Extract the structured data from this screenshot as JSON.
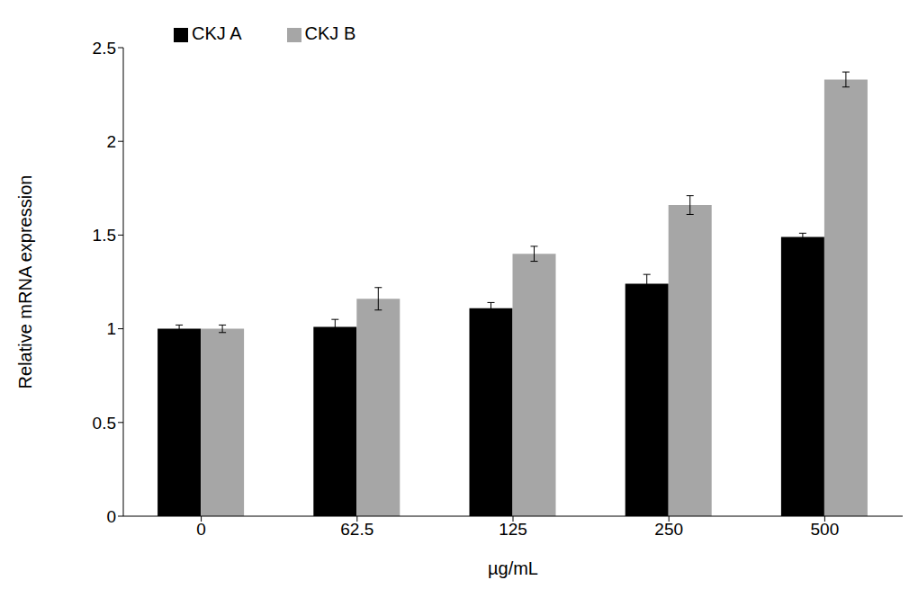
{
  "chart_data": {
    "type": "bar",
    "x_label": "µg/mL",
    "y_label": "Relative mRNA expression",
    "categories": [
      "0",
      "62.5",
      "125",
      "250",
      "500"
    ],
    "series": [
      {
        "name": "CKJ A",
        "color": "#000000",
        "values": [
          1.0,
          1.01,
          1.11,
          1.24,
          1.49
        ],
        "errors": [
          0.02,
          0.04,
          0.03,
          0.05,
          0.02
        ]
      },
      {
        "name": "CKJ B",
        "color": "#a6a6a6",
        "values": [
          1.0,
          1.16,
          1.4,
          1.66,
          2.33
        ],
        "errors": [
          0.02,
          0.06,
          0.04,
          0.05,
          0.04
        ]
      }
    ],
    "ylim": [
      0,
      2.5
    ],
    "yticks": [
      0,
      0.5,
      1,
      1.5,
      2,
      2.5
    ],
    "grid": false,
    "legend": "upper left"
  }
}
